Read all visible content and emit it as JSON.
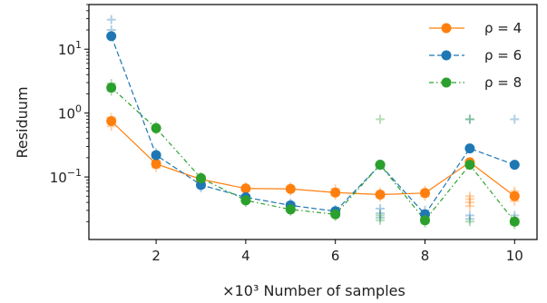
{
  "chart_data": {
    "type": "line",
    "xlabel": "×10³ Number of samples",
    "ylabel": "Residuum",
    "x": [
      1,
      2,
      3,
      4,
      5,
      6,
      7,
      8,
      9,
      10
    ],
    "xticks": [
      2,
      4,
      6,
      8,
      10
    ],
    "xlim": [
      0.5,
      10.5
    ],
    "yscale": "log",
    "ylim": [
      0.0105,
      50
    ],
    "yticks": [
      0.1,
      1,
      10
    ],
    "ytick_labels": [
      {
        "base": "10",
        "exp": "−1"
      },
      {
        "base": "10",
        "exp": "0"
      },
      {
        "base": "10",
        "exp": "1"
      }
    ],
    "legend_position": "top-right",
    "series": [
      {
        "name": "ρ = 4",
        "color": "#ff7f0e",
        "linestyle": "solid",
        "values": [
          0.75,
          0.16,
          0.092,
          0.066,
          0.065,
          0.057,
          0.053,
          0.056,
          0.17,
          0.05
        ],
        "scatter": [
          [
            1,
            0.62
          ],
          [
            1,
            0.85
          ],
          [
            2,
            0.14
          ],
          [
            2,
            0.18
          ],
          [
            3,
            0.085
          ],
          [
            3,
            0.1
          ],
          [
            4,
            0.06
          ],
          [
            4,
            0.07
          ],
          [
            5,
            0.06
          ],
          [
            5,
            0.07
          ],
          [
            6,
            0.052
          ],
          [
            6,
            0.065
          ],
          [
            7,
            0.048
          ],
          [
            7,
            0.058
          ],
          [
            8,
            0.05
          ],
          [
            8,
            0.062
          ],
          [
            9,
            0.035
          ],
          [
            9,
            0.04
          ],
          [
            9,
            0.045
          ],
          [
            9,
            0.05
          ],
          [
            9,
            0.16
          ],
          [
            10,
            0.042
          ],
          [
            10,
            0.055
          ],
          [
            10,
            0.06
          ]
        ]
      },
      {
        "name": "ρ = 6",
        "color": "#1f77b4",
        "linestyle": "dashed",
        "values": [
          16,
          0.22,
          0.075,
          0.048,
          0.036,
          0.029,
          0.155,
          0.026,
          0.28,
          0.155
        ],
        "scatter": [
          [
            1,
            29
          ],
          [
            1,
            20
          ],
          [
            2,
            0.2
          ],
          [
            2,
            0.24
          ],
          [
            3,
            0.068
          ],
          [
            3,
            0.082
          ],
          [
            4,
            0.044
          ],
          [
            4,
            0.052
          ],
          [
            5,
            0.033
          ],
          [
            5,
            0.039
          ],
          [
            6,
            0.027
          ],
          [
            6,
            0.031
          ],
          [
            7,
            0.032
          ],
          [
            7,
            0.027
          ],
          [
            7,
            0.023
          ],
          [
            8,
            0.024
          ],
          [
            8,
            0.03
          ],
          [
            9,
            0.025
          ],
          [
            9,
            0.022
          ],
          [
            9,
            0.8
          ],
          [
            10,
            0.8
          ],
          [
            10,
            0.025
          ],
          [
            10,
            0.02
          ]
        ]
      },
      {
        "name": "ρ = 8",
        "color": "#2ca02c",
        "linestyle": "dashdot",
        "values": [
          2.5,
          0.58,
          0.096,
          0.043,
          0.031,
          0.026,
          0.155,
          0.021,
          0.155,
          0.02
        ],
        "scatter": [
          [
            1,
            2.2
          ],
          [
            1,
            2.9
          ],
          [
            2,
            0.55
          ],
          [
            2,
            0.62
          ],
          [
            3,
            0.09
          ],
          [
            3,
            0.1
          ],
          [
            4,
            0.04
          ],
          [
            4,
            0.046
          ],
          [
            5,
            0.029
          ],
          [
            5,
            0.033
          ],
          [
            6,
            0.024
          ],
          [
            6,
            0.028
          ],
          [
            7,
            0.8
          ],
          [
            7,
            0.021
          ],
          [
            7,
            0.025
          ],
          [
            8,
            0.019
          ],
          [
            8,
            0.023
          ],
          [
            9,
            0.8
          ],
          [
            9,
            0.02
          ],
          [
            10,
            0.018
          ],
          [
            10,
            0.022
          ]
        ]
      }
    ]
  }
}
